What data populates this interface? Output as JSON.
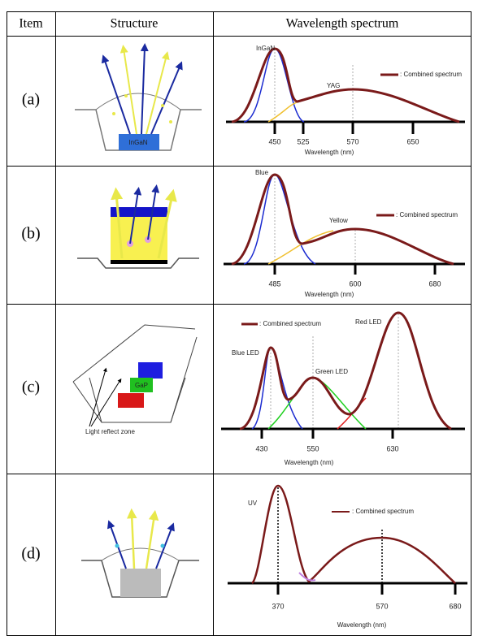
{
  "header": {
    "item": "Item",
    "structure": "Structure",
    "spectrum": "Wavelength spectrum"
  },
  "rows": [
    {
      "item": "(a)",
      "structure_labels": [
        "InGaN"
      ],
      "spectrum": {
        "peak_labels": [
          "InGaN",
          "YAG"
        ],
        "legend": ": Combined spectrum",
        "ticks": [
          "450",
          "525",
          "570",
          "650"
        ],
        "axis_label": "Wavelength (nm)"
      }
    },
    {
      "item": "(b)",
      "spectrum": {
        "peak_labels": [
          "Blue",
          "Yellow"
        ],
        "legend": ": Combined spectrum",
        "ticks": [
          "485",
          "600",
          "680"
        ],
        "axis_label": "Wavelength (nm)"
      }
    },
    {
      "item": "(c)",
      "structure_labels": [
        "GaP",
        "Light reflect zone"
      ],
      "spectrum": {
        "peak_labels": [
          "Blue LED",
          "Green LED",
          "Red LED"
        ],
        "legend": ": Combined spectrum",
        "ticks": [
          "430",
          "550",
          "630"
        ],
        "axis_label": "Wavelength (nm)"
      }
    },
    {
      "item": "(d)",
      "spectrum": {
        "peak_labels": [
          "UV"
        ],
        "legend": ": Combined spectrum",
        "ticks": [
          "370",
          "570",
          "680"
        ],
        "axis_label": "Wavelength (nm)"
      }
    }
  ]
}
